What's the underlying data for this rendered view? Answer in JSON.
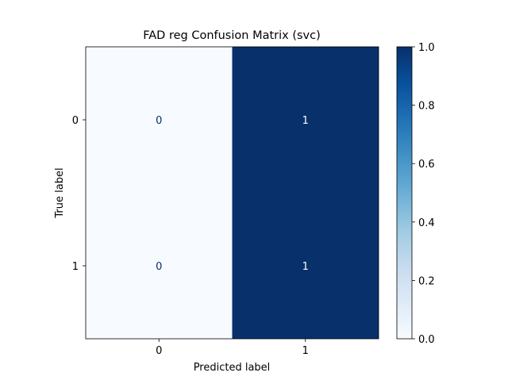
{
  "chart_data": {
    "type": "heatmap",
    "title": "FAD reg Confusion Matrix (svc)",
    "xlabel": "Predicted label",
    "ylabel": "True label",
    "x_categories": [
      "0",
      "1"
    ],
    "y_categories": [
      "0",
      "1"
    ],
    "values": [
      [
        0,
        1
      ],
      [
        0,
        1
      ]
    ],
    "colormap": "Blues",
    "colorbar": {
      "vmin": 0.0,
      "vmax": 1.0,
      "ticks": [
        "0.0",
        "0.2",
        "0.4",
        "0.6",
        "0.8",
        "1.0"
      ]
    },
    "colors": {
      "low": "#f7fbff",
      "high": "#08306b",
      "text_on_low": "#08306b",
      "text_on_high": "#f7fbff"
    }
  }
}
